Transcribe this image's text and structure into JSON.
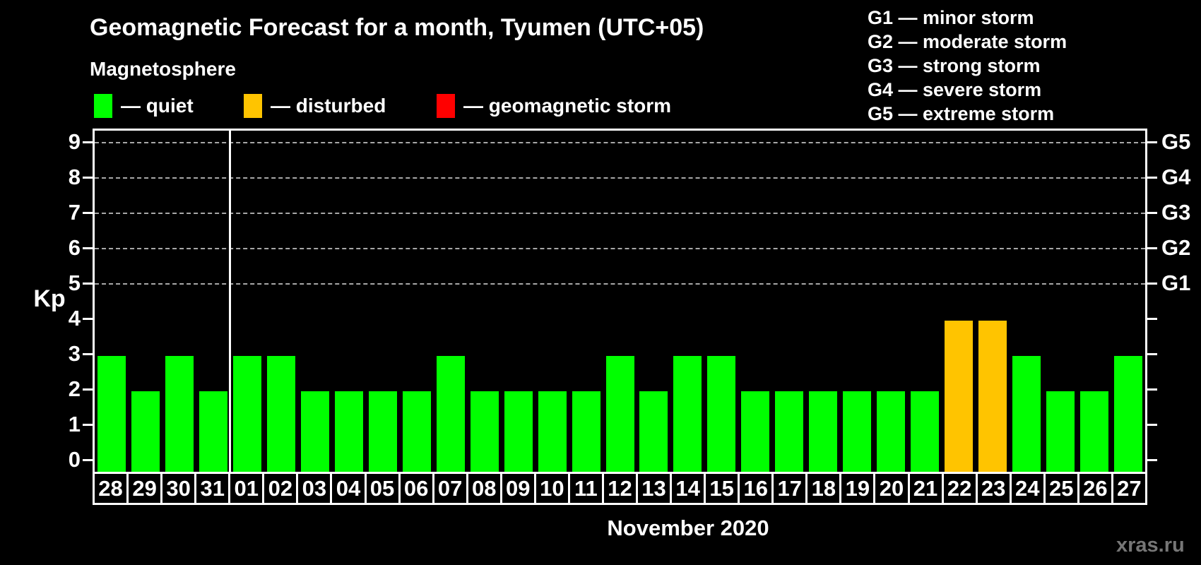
{
  "title": "Geomagnetic Forecast for a month, Tyumen (UTC+05)",
  "subtitle": "Magnetosphere",
  "legend": {
    "items": [
      {
        "key": "quiet",
        "label": "— quiet",
        "color": "#00ff00"
      },
      {
        "key": "disturbed",
        "label": "— disturbed",
        "color": "#ffc400"
      },
      {
        "key": "storm",
        "label": "— geomagnetic storm",
        "color": "#ff0000"
      }
    ]
  },
  "g_legend": [
    "G1 — minor storm",
    "G2 — moderate storm",
    "G3 — strong storm",
    "G4 — severe storm",
    "G5 — extreme storm"
  ],
  "axis": {
    "y_label": "Kp",
    "y_ticks": [
      0,
      1,
      2,
      3,
      4,
      5,
      6,
      7,
      8,
      9
    ],
    "right_labels": {
      "5": "G1",
      "6": "G2",
      "7": "G3",
      "8": "G4",
      "9": "G5"
    }
  },
  "chart_data": {
    "type": "bar",
    "title": "Geomagnetic Forecast for a month, Tyumen (UTC+05)",
    "categories": [
      "28",
      "29",
      "30",
      "31",
      "01",
      "02",
      "03",
      "04",
      "05",
      "06",
      "07",
      "08",
      "09",
      "10",
      "11",
      "12",
      "13",
      "14",
      "15",
      "16",
      "17",
      "18",
      "19",
      "20",
      "21",
      "22",
      "23",
      "24",
      "25",
      "26",
      "27"
    ],
    "values": [
      3,
      2,
      3,
      2,
      3,
      3,
      2,
      2,
      2,
      2,
      3,
      2,
      2,
      2,
      2,
      3,
      2,
      3,
      3,
      2,
      2,
      2,
      2,
      2,
      2,
      4,
      4,
      3,
      2,
      2,
      3
    ],
    "states": [
      "quiet",
      "quiet",
      "quiet",
      "quiet",
      "quiet",
      "quiet",
      "quiet",
      "quiet",
      "quiet",
      "quiet",
      "quiet",
      "quiet",
      "quiet",
      "quiet",
      "quiet",
      "quiet",
      "quiet",
      "quiet",
      "quiet",
      "quiet",
      "quiet",
      "quiet",
      "quiet",
      "quiet",
      "quiet",
      "disturbed",
      "disturbed",
      "quiet",
      "quiet",
      "quiet",
      "quiet"
    ],
    "colors": {
      "quiet": "#00ff00",
      "disturbed": "#ffc400",
      "storm": "#ff0000"
    },
    "xlabel": "November 2020",
    "ylabel": "Kp",
    "ylim": [
      0,
      9
    ],
    "gridlines": [
      5,
      6,
      7,
      8,
      9
    ],
    "legend_position": "top",
    "month_separator_after": "31"
  },
  "watermark": "xras.ru"
}
